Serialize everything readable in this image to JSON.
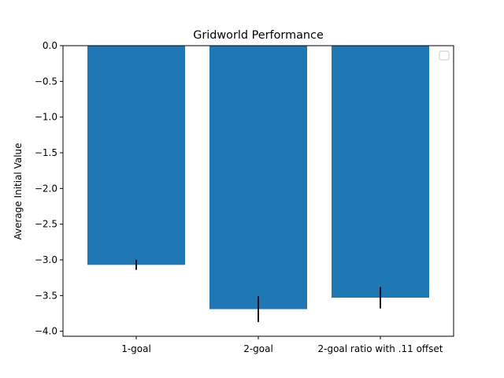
{
  "chart_data": {
    "type": "bar",
    "title": "Gridworld Performance",
    "xlabel": "",
    "ylabel": "Average Initial Value",
    "categories": [
      "1-goal",
      "2-goal",
      "2-goal ratio with .11 offset"
    ],
    "values": [
      -3.07,
      -3.69,
      -3.53
    ],
    "errors": [
      0.07,
      0.18,
      0.15
    ],
    "ylim": [
      -4.07,
      0.0
    ],
    "yticks": [
      0.0,
      -0.5,
      -1.0,
      -1.5,
      -2.0,
      -2.5,
      -3.0,
      -3.5,
      -4.0
    ],
    "ytick_labels": [
      "0.0",
      "−0.5",
      "−1.0",
      "−1.5",
      "−2.0",
      "−2.5",
      "−3.0",
      "−3.5",
      "−4.0"
    ],
    "grid": false,
    "legend": {
      "placement": "upper-right",
      "entries": []
    },
    "colors": {
      "bar": "#1f77b4",
      "error_bar": "#000000",
      "axes": "#000000"
    }
  }
}
